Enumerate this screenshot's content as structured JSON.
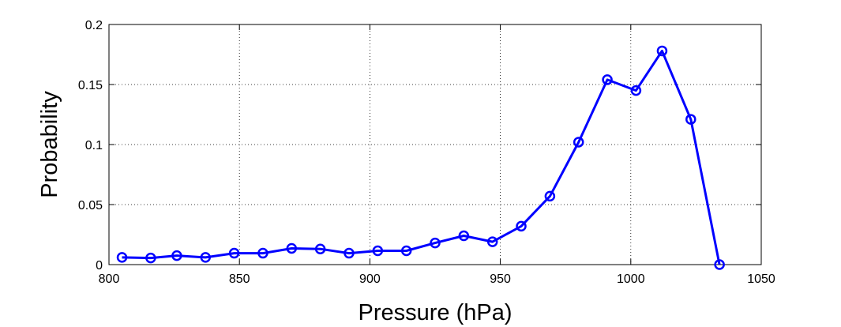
{
  "chart_data": {
    "type": "line",
    "xlabel": "Pressure (hPa)",
    "ylabel": "Probability",
    "xlim": [
      800,
      1050
    ],
    "ylim": [
      0,
      0.2
    ],
    "x_ticks": [
      800,
      850,
      900,
      950,
      1000,
      1050
    ],
    "y_ticks": [
      0,
      0.05,
      0.1,
      0.15,
      0.2
    ],
    "x_tick_labels": [
      "800",
      "850",
      "900",
      "950",
      "1000",
      "1050"
    ],
    "y_tick_labels": [
      "0",
      "0.05",
      "0.1",
      "0.15",
      "0.2"
    ],
    "grid": true,
    "marker": "circle",
    "line_color": "#0000ff",
    "series": [
      {
        "x": [
          805,
          816,
          826,
          837,
          848,
          859,
          870,
          881,
          892,
          903,
          914,
          925,
          936,
          947,
          958,
          969,
          980,
          991,
          1002,
          1012,
          1023,
          1034
        ],
        "y": [
          0.006,
          0.0055,
          0.0075,
          0.006,
          0.0095,
          0.0095,
          0.0135,
          0.013,
          0.0095,
          0.0115,
          0.0115,
          0.018,
          0.024,
          0.019,
          0.032,
          0.057,
          0.102,
          0.154,
          0.145,
          0.178,
          0.121,
          0.0
        ]
      }
    ]
  }
}
